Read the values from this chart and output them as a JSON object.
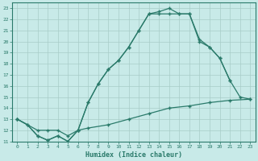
{
  "xlabel": "Humidex (Indice chaleur)",
  "line_color": "#2a7a6a",
  "bg_color": "#c8eae8",
  "grid_color": "#a8ccc8",
  "spine_color": "#2a7a6a",
  "xlim": [
    -0.5,
    23.5
  ],
  "ylim": [
    11,
    23.5
  ],
  "yticks": [
    11,
    12,
    13,
    14,
    15,
    16,
    17,
    18,
    19,
    20,
    21,
    22,
    23
  ],
  "xticks": [
    0,
    1,
    2,
    3,
    4,
    5,
    6,
    7,
    8,
    9,
    10,
    11,
    12,
    13,
    14,
    15,
    16,
    17,
    18,
    19,
    20,
    21,
    22,
    23
  ],
  "line1_x": [
    0,
    1,
    2,
    3,
    4,
    5,
    6,
    7,
    8,
    9,
    10,
    11,
    12,
    13,
    14,
    15,
    16,
    17,
    18,
    19,
    20,
    21
  ],
  "line1_y": [
    13.0,
    12.5,
    11.5,
    11.1,
    11.5,
    11.0,
    12.0,
    14.5,
    16.2,
    17.5,
    18.3,
    19.5,
    21.0,
    22.5,
    22.7,
    23.0,
    22.5,
    22.5,
    20.0,
    19.5,
    18.5,
    16.5
  ],
  "line2_x": [
    0,
    2,
    3,
    4,
    5,
    6,
    7,
    9,
    11,
    13,
    15,
    17,
    19,
    21,
    23
  ],
  "line2_y": [
    13.0,
    12.0,
    12.0,
    12.0,
    11.5,
    12.0,
    12.2,
    12.5,
    13.0,
    13.5,
    14.0,
    14.2,
    14.5,
    14.7,
    14.8
  ],
  "line3_x": [
    0,
    1,
    2,
    3,
    4,
    5,
    6,
    7,
    8,
    9,
    10,
    11,
    12,
    13,
    14,
    15,
    16,
    17,
    18,
    19,
    20,
    21,
    22,
    23
  ],
  "line3_y": [
    13.0,
    12.5,
    11.5,
    11.1,
    11.5,
    11.0,
    12.0,
    14.5,
    16.2,
    17.5,
    18.3,
    19.5,
    21.0,
    22.5,
    22.5,
    22.5,
    22.5,
    22.5,
    20.2,
    19.5,
    18.5,
    16.5,
    15.0,
    14.8
  ]
}
